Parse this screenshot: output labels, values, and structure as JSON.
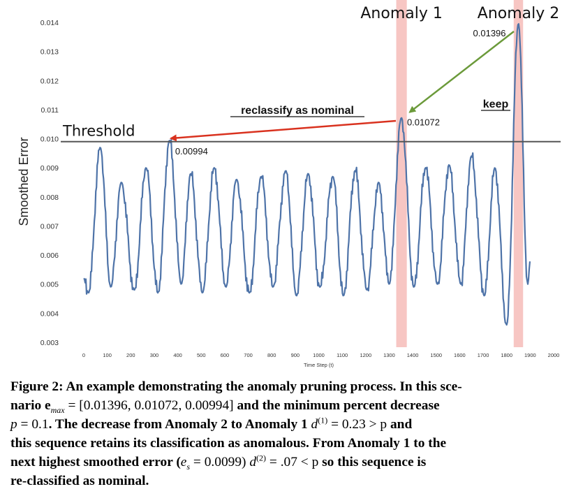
{
  "chart_data": {
    "type": "line",
    "xlabel": "Time Step (t)",
    "ylabel": "Smoothed Error",
    "xlim": [
      0,
      2000
    ],
    "ylim": [
      0.003,
      0.014
    ],
    "x_ticks": [
      0,
      100,
      200,
      300,
      400,
      500,
      600,
      700,
      800,
      900,
      1000,
      1100,
      1200,
      1300,
      1400,
      1500,
      1600,
      1700,
      1800,
      1900,
      2000
    ],
    "y_ticks": [
      "0.003",
      "0.004",
      "0.005",
      "0.006",
      "0.007",
      "0.008",
      "0.009",
      "0.010",
      "0.011",
      "0.012",
      "0.013",
      "0.014"
    ],
    "grid": false,
    "series_color": "#4e73a8",
    "threshold": {
      "label": "Threshold",
      "value": 0.0099,
      "color": "#555555"
    },
    "anomaly_windows": [
      {
        "label": "Anomaly 1",
        "x_start": 1330,
        "x_end": 1375,
        "color": "#f7c6c3"
      },
      {
        "label": "Anomaly 2",
        "x_start": 1830,
        "x_end": 1870,
        "color": "#f7c6c3"
      }
    ],
    "annotations": [
      {
        "text": "0.01396",
        "x": 1850,
        "y": 0.01396
      },
      {
        "text": "0.01072",
        "x": 1352,
        "y": 0.01072
      },
      {
        "text": "0.00994",
        "x": 365,
        "y": 0.00994
      },
      {
        "text": "reclassify as nominal",
        "color": "#d9321f"
      },
      {
        "text": "keep",
        "color": "#6b9a3a"
      }
    ],
    "peaks": [
      {
        "x": 70,
        "y": 0.0097
      },
      {
        "x": 160,
        "y": 0.0085
      },
      {
        "x": 265,
        "y": 0.009
      },
      {
        "x": 365,
        "y": 0.00994
      },
      {
        "x": 455,
        "y": 0.0088
      },
      {
        "x": 555,
        "y": 0.009
      },
      {
        "x": 650,
        "y": 0.0086
      },
      {
        "x": 755,
        "y": 0.0087
      },
      {
        "x": 860,
        "y": 0.0089
      },
      {
        "x": 955,
        "y": 0.0088
      },
      {
        "x": 1060,
        "y": 0.0087
      },
      {
        "x": 1155,
        "y": 0.0089
      },
      {
        "x": 1255,
        "y": 0.0085
      },
      {
        "x": 1352,
        "y": 0.01072
      },
      {
        "x": 1455,
        "y": 0.009
      },
      {
        "x": 1555,
        "y": 0.0091
      },
      {
        "x": 1650,
        "y": 0.0094
      },
      {
        "x": 1750,
        "y": 0.009
      },
      {
        "x": 1850,
        "y": 0.01396
      }
    ],
    "troughs": [
      {
        "x": 20,
        "y": 0.0047
      },
      {
        "x": 115,
        "y": 0.0049
      },
      {
        "x": 215,
        "y": 0.0048
      },
      {
        "x": 315,
        "y": 0.0047
      },
      {
        "x": 415,
        "y": 0.005
      },
      {
        "x": 505,
        "y": 0.0047
      },
      {
        "x": 605,
        "y": 0.0049
      },
      {
        "x": 705,
        "y": 0.0047
      },
      {
        "x": 805,
        "y": 0.0049
      },
      {
        "x": 905,
        "y": 0.0046
      },
      {
        "x": 1005,
        "y": 0.0049
      },
      {
        "x": 1105,
        "y": 0.0046
      },
      {
        "x": 1205,
        "y": 0.0048
      },
      {
        "x": 1300,
        "y": 0.005
      },
      {
        "x": 1405,
        "y": 0.0049
      },
      {
        "x": 1505,
        "y": 0.005
      },
      {
        "x": 1605,
        "y": 0.005
      },
      {
        "x": 1705,
        "y": 0.0046
      },
      {
        "x": 1800,
        "y": 0.0036
      },
      {
        "x": 1890,
        "y": 0.005
      }
    ],
    "series_start": {
      "x": 0,
      "y": 0.0052
    },
    "series_end": {
      "x": 1900,
      "y": 0.0058
    }
  },
  "caption": {
    "lead": "Figure 2: An example demonstrating the anomaly pruning process. In this sce-",
    "l2a": "nario ",
    "l2b": "e",
    "l2c": "max",
    "l2d": " = [0.01396, 0.01072, 0.00994]",
    "l2e": " and the minimum percent decrease",
    "l3a": "p",
    "l3b": " = 0.1",
    "l3c": ". The decrease from Anomaly 2 to Anomaly 1 ",
    "l3d": "d",
    "l3e": "(1)",
    "l3f": " = 0.23 > p",
    "l3g": " and",
    "l4": "this sequence retains its classification as anomalous. From Anomaly 1 to the",
    "l5a": "next highest smoothed error (",
    "l5b": "e",
    "l5c": "s",
    "l5d": " = 0.0099)",
    "l5e": " ",
    "l5f": "d",
    "l5g": "(2)",
    "l5h": " = .07 < p",
    "l5i": " so this sequence is",
    "l6": "re-classified as nominal."
  }
}
